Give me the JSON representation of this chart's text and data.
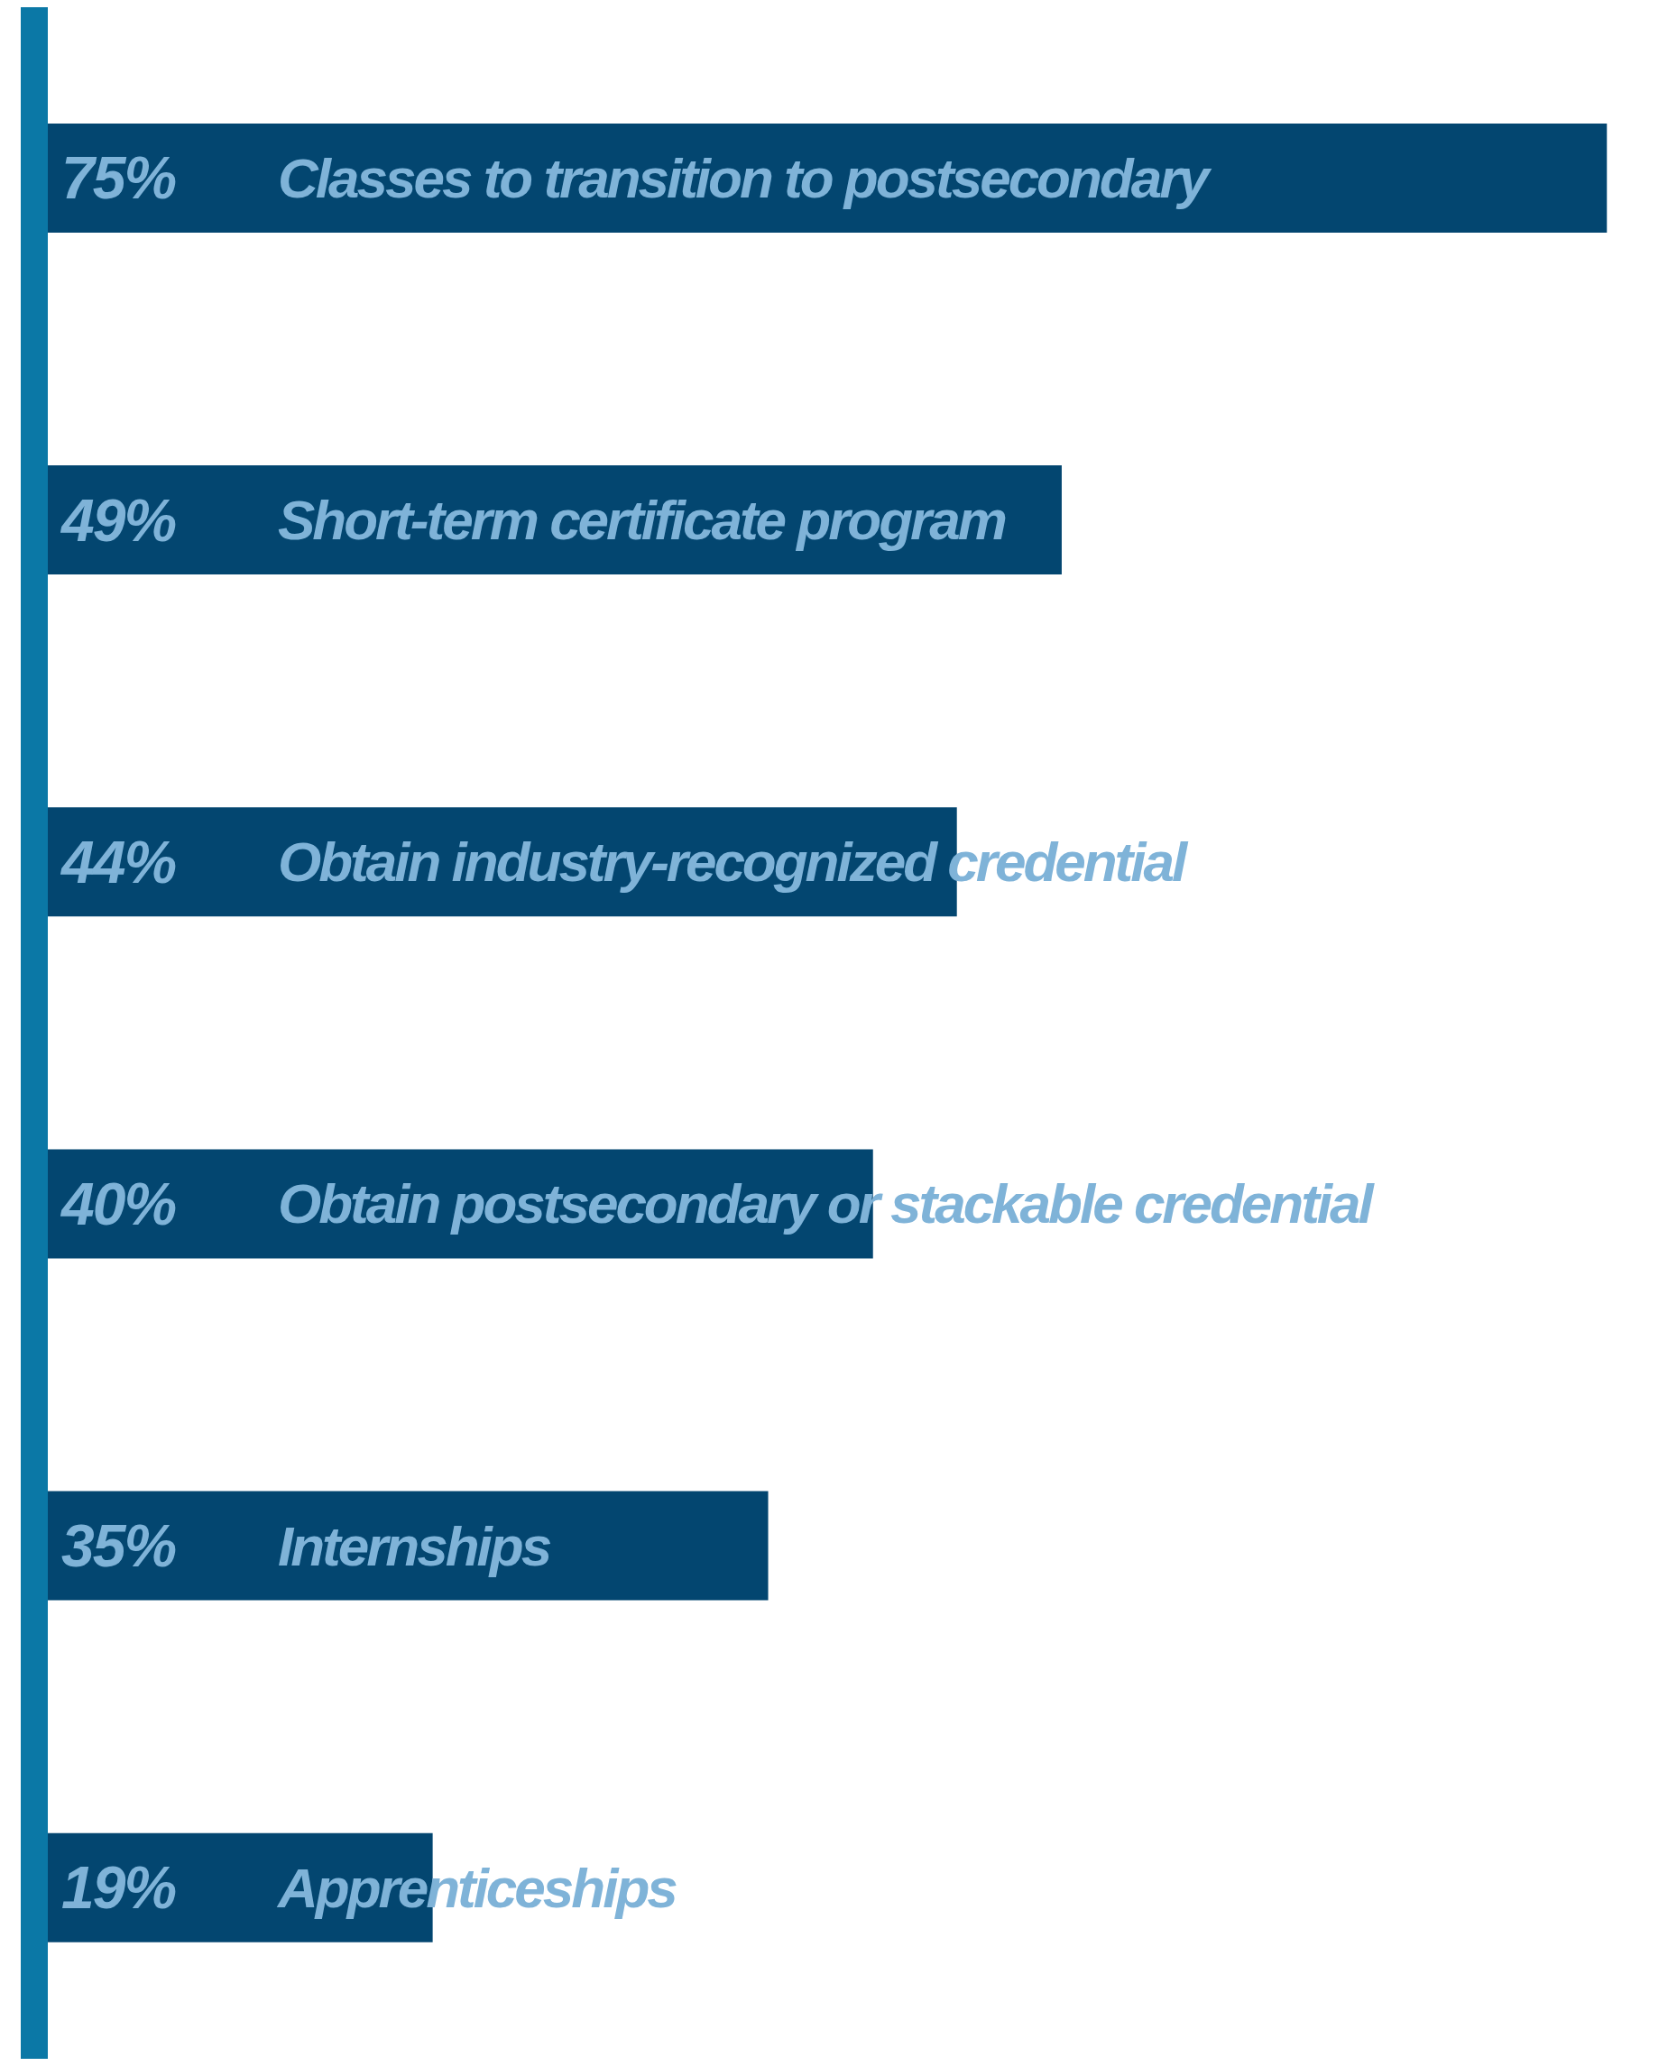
{
  "chart_data": {
    "type": "bar",
    "orientation": "horizontal",
    "categories": [
      "Classes to transition to postsecondary",
      "Short-term certificate program",
      "Obtain industry-recognized credential",
      "Obtain postsecondary or stackable credential",
      "Internships",
      "Apprenticeships"
    ],
    "values": [
      75,
      49,
      44,
      40,
      35,
      19
    ],
    "value_labels": [
      "75%",
      "49%",
      "44%",
      "40%",
      "35%",
      "19%"
    ],
    "color": "#034670"
  }
}
